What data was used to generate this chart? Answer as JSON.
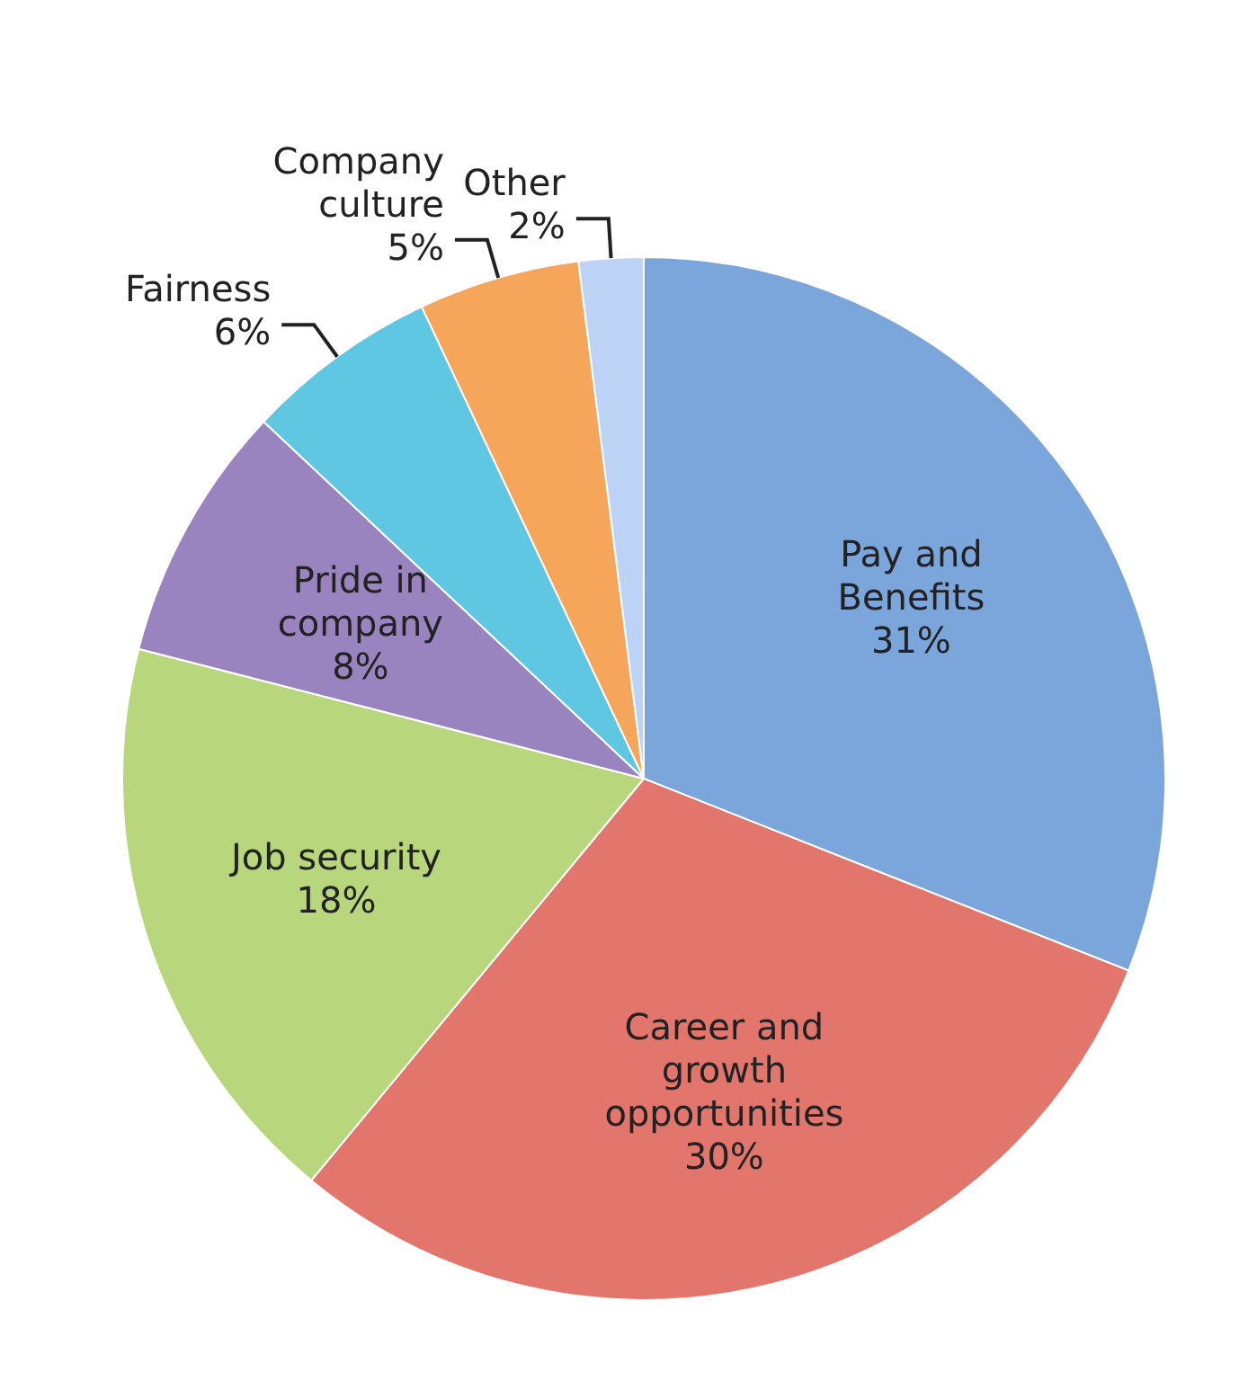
{
  "chart_data": {
    "type": "pie",
    "categories": [
      "Pay and Benefits",
      "Career and growth opportunities",
      "Job security",
      "Pride in company",
      "Fairness",
      "Company culture",
      "Other"
    ],
    "values": [
      31,
      30,
      18,
      8,
      6,
      5,
      2
    ],
    "colors": [
      "#7ba6dc",
      "#e2766c",
      "#b8d67c",
      "#9a84c0",
      "#5fc7e2",
      "#f6a65a",
      "#bcd3f5"
    ],
    "value_labels": [
      "31%",
      "30%",
      "18%",
      "8%",
      "6%",
      "5%",
      "2%"
    ],
    "legend": false
  }
}
